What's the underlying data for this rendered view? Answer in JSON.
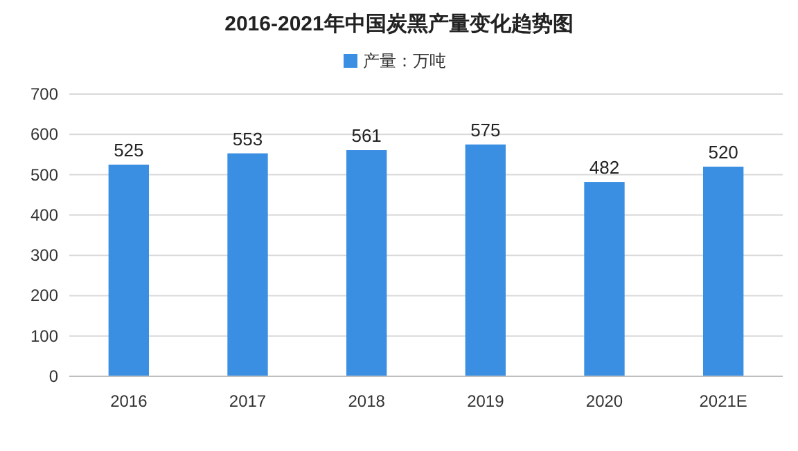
{
  "chart_data": {
    "type": "bar",
    "title": "2016-2021年中国炭黑产量变化趋势图",
    "categories": [
      "2016",
      "2017",
      "2018",
      "2019",
      "2020",
      "2021E"
    ],
    "series": [
      {
        "name": "产量：万吨",
        "color": "#3b8fe3",
        "values": [
          525,
          553,
          561,
          575,
          482,
          520
        ]
      }
    ],
    "ylim": [
      0,
      700
    ],
    "yticks": [
      0,
      100,
      200,
      300,
      400,
      500,
      600,
      700
    ],
    "grid": "y",
    "legend": "top",
    "data_labels": true
  }
}
